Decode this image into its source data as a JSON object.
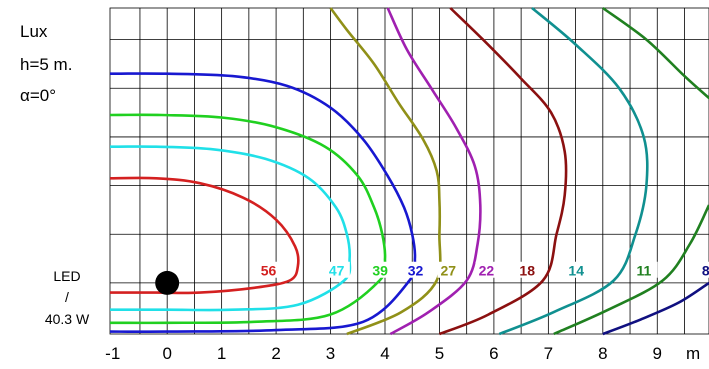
{
  "chart_data": {
    "type": "contour",
    "side_labels": {
      "unit": "Lux",
      "height": "h=5 m.",
      "angle": "α=0°"
    },
    "lamp": {
      "name": "LED",
      "separator": "/",
      "power": "40.3 W",
      "position": [
        0,
        0
      ]
    },
    "x_ticks": [
      "-1",
      "0",
      "1",
      "2",
      "3",
      "4",
      "5",
      "6",
      "7",
      "8",
      "9"
    ],
    "x_unit": "m",
    "xlim": [
      -1.05,
      9.95
    ],
    "ylim": [
      -1.05,
      5.65
    ],
    "grid": true,
    "isolines": [
      {
        "lux": "56",
        "color": "#d42020",
        "points": [
          [
            -1.05,
            2.15
          ],
          [
            -0.2,
            2.15
          ],
          [
            0.6,
            2.05
          ],
          [
            1.4,
            1.75
          ],
          [
            2.0,
            1.3
          ],
          [
            2.35,
            0.75
          ],
          [
            2.4,
            0.35
          ],
          [
            2.25,
            0.05
          ],
          [
            1.6,
            -0.1
          ],
          [
            0.6,
            -0.2
          ],
          [
            -0.2,
            -0.2
          ],
          [
            -1.05,
            -0.2
          ]
        ]
      },
      {
        "lux": "47",
        "color": "#20e0e8",
        "points": [
          [
            -1.05,
            2.8
          ],
          [
            -0.2,
            2.8
          ],
          [
            0.8,
            2.75
          ],
          [
            1.8,
            2.55
          ],
          [
            2.6,
            2.15
          ],
          [
            3.1,
            1.55
          ],
          [
            3.3,
            1.0
          ],
          [
            3.35,
            0.5
          ],
          [
            3.25,
            0.05
          ],
          [
            2.4,
            -0.45
          ],
          [
            1.2,
            -0.55
          ],
          [
            0.0,
            -0.55
          ],
          [
            -1.05,
            -0.55
          ]
        ]
      },
      {
        "lux": "39",
        "color": "#20d020",
        "points": [
          [
            -1.05,
            3.45
          ],
          [
            -0.1,
            3.45
          ],
          [
            1.0,
            3.4
          ],
          [
            2.0,
            3.2
          ],
          [
            2.9,
            2.8
          ],
          [
            3.5,
            2.2
          ],
          [
            3.8,
            1.55
          ],
          [
            3.95,
            1.0
          ],
          [
            4.0,
            0.5
          ],
          [
            3.9,
            0.05
          ],
          [
            3.0,
            -0.65
          ],
          [
            1.6,
            -0.8
          ],
          [
            0.0,
            -0.82
          ],
          [
            -1.05,
            -0.82
          ]
        ]
      },
      {
        "lux": "32",
        "color": "#1818d0",
        "points": [
          [
            -1.05,
            4.3
          ],
          [
            0.0,
            4.3
          ],
          [
            1.2,
            4.25
          ],
          [
            2.2,
            4.05
          ],
          [
            3.0,
            3.6
          ],
          [
            3.6,
            2.95
          ],
          [
            4.05,
            2.2
          ],
          [
            4.35,
            1.55
          ],
          [
            4.5,
            1.0
          ],
          [
            4.55,
            0.5
          ],
          [
            4.45,
            0.05
          ],
          [
            3.6,
            -0.8
          ],
          [
            2.0,
            -0.97
          ],
          [
            0.0,
            -1.0
          ],
          [
            -1.05,
            -1.0
          ]
        ]
      },
      {
        "lux": "27",
        "color": "#909018",
        "points": [
          [
            3.0,
            5.65
          ],
          [
            3.3,
            5.2
          ],
          [
            3.8,
            4.5
          ],
          [
            4.25,
            3.7
          ],
          [
            4.7,
            2.95
          ],
          [
            4.95,
            2.3
          ],
          [
            5.0,
            1.7
          ],
          [
            5.0,
            1.0
          ],
          [
            4.95,
            0.05
          ],
          [
            4.3,
            -0.6
          ],
          [
            3.3,
            -1.05
          ]
        ]
      },
      {
        "lux": "22",
        "color": "#a020b0",
        "points": [
          [
            4.05,
            5.65
          ],
          [
            4.4,
            4.8
          ],
          [
            4.85,
            4.0
          ],
          [
            5.3,
            3.2
          ],
          [
            5.65,
            2.4
          ],
          [
            5.75,
            1.6
          ],
          [
            5.7,
            0.8
          ],
          [
            5.5,
            0.05
          ],
          [
            4.8,
            -0.6
          ],
          [
            4.1,
            -1.05
          ]
        ]
      },
      {
        "lux": "18",
        "color": "#8b1010",
        "points": [
          [
            5.2,
            5.65
          ],
          [
            5.8,
            5.0
          ],
          [
            6.5,
            4.2
          ],
          [
            7.05,
            3.5
          ],
          [
            7.3,
            2.7
          ],
          [
            7.3,
            1.8
          ],
          [
            7.15,
            1.0
          ],
          [
            6.9,
            0.05
          ],
          [
            5.9,
            -0.65
          ],
          [
            5.0,
            -1.05
          ]
        ]
      },
      {
        "lux": "14",
        "color": "#109090",
        "points": [
          [
            6.7,
            5.65
          ],
          [
            7.5,
            4.9
          ],
          [
            8.3,
            4.0
          ],
          [
            8.75,
            3.0
          ],
          [
            8.8,
            2.0
          ],
          [
            8.6,
            1.0
          ],
          [
            8.2,
            0.05
          ],
          [
            7.1,
            -0.6
          ],
          [
            6.1,
            -1.05
          ]
        ]
      },
      {
        "lux": "11",
        "color": "#208020",
        "points": [
          [
            8.0,
            5.65
          ],
          [
            8.8,
            5.0
          ],
          [
            9.5,
            4.25
          ],
          [
            9.95,
            3.8
          ],
          [
            9.95,
            3.8
          ]
        ]
      },
      {
        "lux": "11b",
        "color": "#208020",
        "points": [
          [
            9.95,
            1.6
          ],
          [
            9.6,
            0.8
          ],
          [
            9.1,
            0.05
          ],
          [
            8.1,
            -0.55
          ],
          [
            7.1,
            -1.05
          ]
        ]
      },
      {
        "lux": "8",
        "color": "#101080",
        "points": [
          [
            9.95,
            0.0
          ],
          [
            9.4,
            -0.4
          ],
          [
            8.7,
            -0.75
          ],
          [
            8.0,
            -1.05
          ]
        ]
      }
    ],
    "labels_row": {
      "y": 0.25,
      "items": [
        {
          "text": "56",
          "x": 1.7,
          "color": "#d42020"
        },
        {
          "text": "47",
          "x": 2.95,
          "color": "#20e0e8"
        },
        {
          "text": "39",
          "x": 3.75,
          "color": "#20d020"
        },
        {
          "text": "32",
          "x": 4.4,
          "color": "#1818d0"
        },
        {
          "text": "27",
          "x": 5.0,
          "color": "#909018"
        },
        {
          "text": "22",
          "x": 5.7,
          "color": "#a020b0"
        },
        {
          "text": "18",
          "x": 6.45,
          "color": "#8b1010"
        },
        {
          "text": "14",
          "x": 7.35,
          "color": "#109090"
        },
        {
          "text": "11",
          "x": 8.6,
          "color": "#208020"
        },
        {
          "text": "8",
          "x": 9.8,
          "color": "#101080"
        }
      ]
    }
  }
}
